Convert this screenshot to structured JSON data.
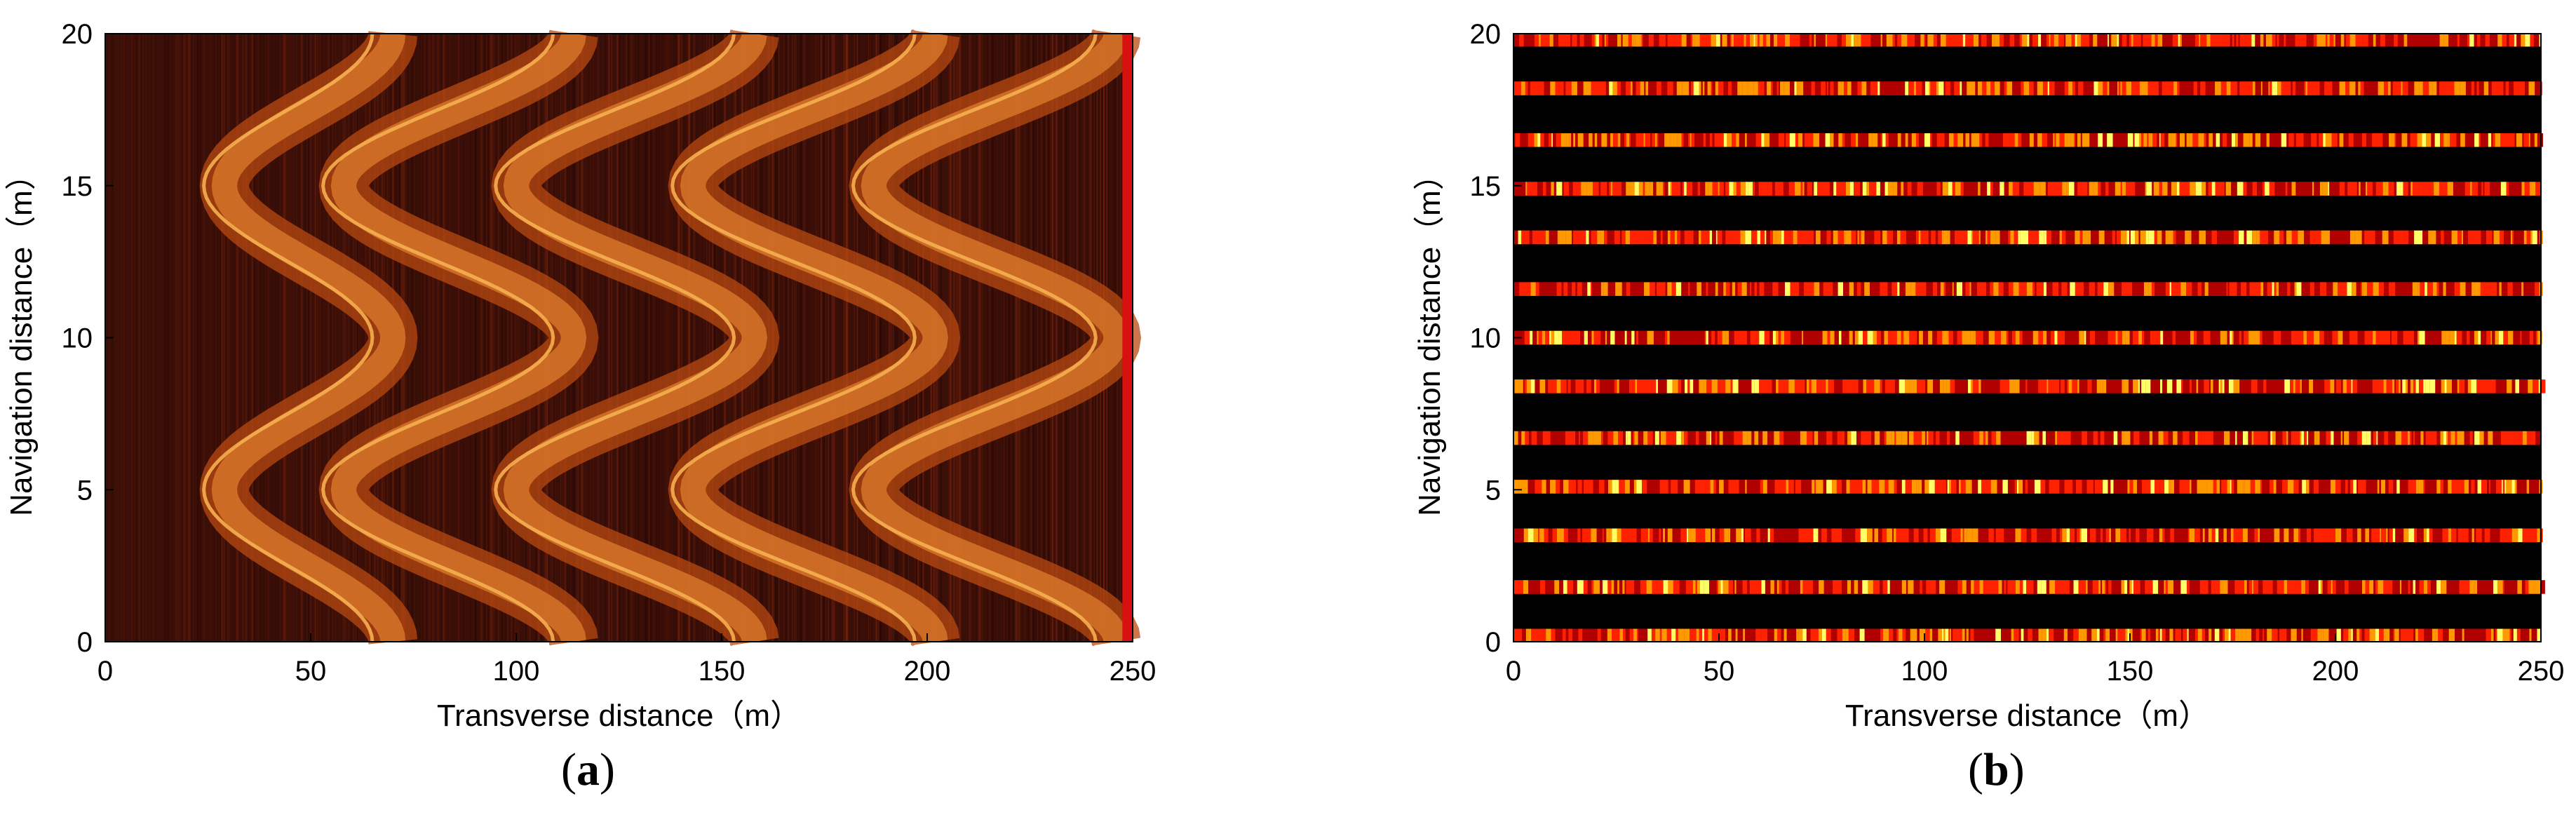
{
  "chart_data": [
    {
      "id": "a",
      "type": "heatmap",
      "panel_label": "a",
      "xlabel": "Transverse distance（m）",
      "ylabel": "Navigation distance（m）",
      "xlim": [
        0,
        250
      ],
      "ylim": [
        0,
        20
      ],
      "xticks": [
        0,
        50,
        100,
        150,
        200,
        250
      ],
      "yticks": [
        0,
        5,
        10,
        15,
        20
      ],
      "grid": false,
      "colormap": [
        "#3a0a04",
        "#8a2208",
        "#c8520e",
        "#f0a040"
      ],
      "bands": [
        {
          "peak_x": 70,
          "trough_x": 29,
          "period_y": 10,
          "phase": "max at y=0,10,20; min at y=5,15"
        },
        {
          "peak_x": 114,
          "trough_x": 58,
          "period_y": 10,
          "phase": "max at y=0,10,20; min at y=5,15"
        },
        {
          "peak_x": 158,
          "trough_x": 100,
          "period_y": 10,
          "phase": "max at y=0,10,20; min at y=5,15"
        },
        {
          "peak_x": 202,
          "trough_x": 143,
          "period_y": 10,
          "phase": "max at y=0,10,20; min at y=5,15"
        },
        {
          "peak_x": 246,
          "trough_x": 187,
          "period_y": 10,
          "phase": "max at y=0,10,20; min at y=5,15"
        }
      ],
      "background_color": "#3b0f08"
    },
    {
      "id": "b",
      "type": "heatmap",
      "panel_label": "b",
      "xlabel": "Transverse distance（m）",
      "ylabel": "Navigation distance（m）",
      "xlim": [
        0,
        250
      ],
      "ylim": [
        0,
        20
      ],
      "xticks": [
        0,
        50,
        100,
        150,
        200,
        250
      ],
      "yticks": [
        0,
        5,
        10,
        15,
        20
      ],
      "grid": false,
      "colormap": [
        "#000000",
        "#b00000",
        "#ff2200",
        "#ff9900",
        "#ffff66"
      ],
      "stripe_centers_y": [
        0.2,
        1.8,
        3.5,
        5.1,
        6.7,
        8.4,
        10.0,
        11.6,
        13.3,
        14.9,
        16.5,
        18.2,
        19.8
      ],
      "stripe_thickness_y": 0.45,
      "background_color": "#000000"
    }
  ]
}
